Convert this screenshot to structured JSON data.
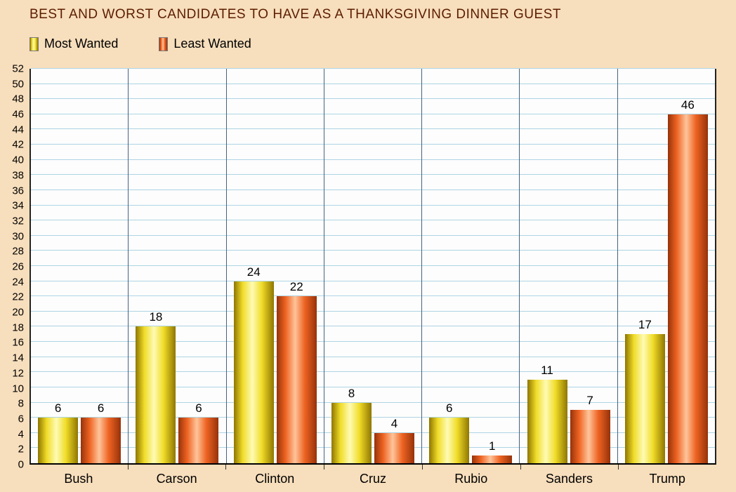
{
  "title": "BEST AND WORST CANDIDATES TO HAVE AS A THANKSGIVING DINNER GUEST",
  "colors": {
    "background": "#f7debc",
    "title": "#5c1d00",
    "grid": "#aed4e4",
    "separator": "#47637e",
    "axis": "#222222",
    "plot_bg": "#fdfdfd"
  },
  "chart_data": {
    "type": "bar",
    "title": "BEST AND WORST CANDIDATES TO HAVE AS A THANKSGIVING DINNER GUEST",
    "categories": [
      "Bush",
      "Carson",
      "Clinton",
      "Cruz",
      "Rubio",
      "Sanders",
      "Trump"
    ],
    "series": [
      {
        "name": "Most Wanted",
        "color": "#f0dc28",
        "color_dark": "#8f7600",
        "color_highlight": "#fffbb4",
        "values": [
          6,
          18,
          24,
          8,
          6,
          11,
          17
        ]
      },
      {
        "name": "Least Wanted",
        "color": "#ee6322",
        "color_dark": "#96320a",
        "color_highlight": "#ffc49a",
        "values": [
          6,
          6,
          22,
          4,
          1,
          7,
          46
        ]
      }
    ],
    "ylim": [
      0,
      52
    ],
    "ytick_step": 2,
    "grid": true,
    "legend_position": "top-left",
    "xlabel": "",
    "ylabel": ""
  }
}
